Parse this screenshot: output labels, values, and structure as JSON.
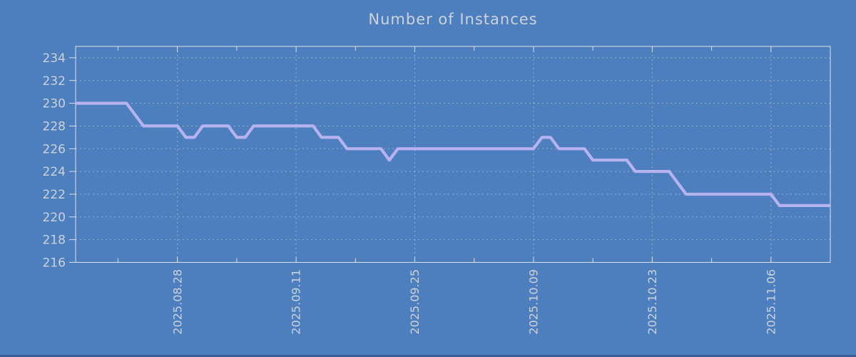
{
  "window": {
    "background_color": "#4d7ebd",
    "bottom_strip_color": "#3a5c92"
  },
  "chart_data": {
    "type": "line",
    "title": "Number of Instances",
    "grid": true,
    "legend": false,
    "colors": {
      "background": "#4d7ebd",
      "line": "#b7b3f1",
      "border": "#dde1e6",
      "grid": "#d4d8d4",
      "text": "#ccd2d9",
      "title": "#ced3da"
    },
    "y_axis": {
      "min": 216,
      "max": 235,
      "ticks": [
        {
          "value": 216,
          "label": "216"
        },
        {
          "value": 218,
          "label": "218"
        },
        {
          "value": 220,
          "label": "220"
        },
        {
          "value": 222,
          "label": "222"
        },
        {
          "value": 224,
          "label": "224"
        },
        {
          "value": 226,
          "label": "226"
        },
        {
          "value": 228,
          "label": "228"
        },
        {
          "value": 230,
          "label": "230"
        },
        {
          "value": 232,
          "label": "232"
        },
        {
          "value": 234,
          "label": "234"
        }
      ]
    },
    "x_axis": {
      "start": "2025-08-16",
      "end": "2025-11-13",
      "major_ticks": [
        {
          "date": "2025-08-28",
          "label": "2025.08.28"
        },
        {
          "date": "2025-09-11",
          "label": "2025.09.11"
        },
        {
          "date": "2025-09-25",
          "label": "2025.09.25"
        },
        {
          "date": "2025-10-09",
          "label": "2025.10.09"
        },
        {
          "date": "2025-10-23",
          "label": "2025.10.23"
        },
        {
          "date": "2025-11-06",
          "label": "2025.11.06"
        }
      ],
      "minor_ticks": [
        "2025-08-21",
        "2025-09-04",
        "2025-09-18",
        "2025-10-02",
        "2025-10-16",
        "2025-10-30",
        "2025-11-13"
      ]
    },
    "series": [
      {
        "name": "instances",
        "color": "#b7b3f1",
        "points": [
          [
            "2025-08-16",
            230
          ],
          [
            "2025-08-17",
            230
          ],
          [
            "2025-08-18",
            230
          ],
          [
            "2025-08-19",
            230
          ],
          [
            "2025-08-20",
            230
          ],
          [
            "2025-08-21",
            230
          ],
          [
            "2025-08-22",
            230
          ],
          [
            "2025-08-23",
            229
          ],
          [
            "2025-08-24",
            228
          ],
          [
            "2025-08-25",
            228
          ],
          [
            "2025-08-26",
            228
          ],
          [
            "2025-08-27",
            228
          ],
          [
            "2025-08-28",
            228
          ],
          [
            "2025-08-29",
            227
          ],
          [
            "2025-08-30",
            227
          ],
          [
            "2025-08-31",
            228
          ],
          [
            "2025-09-01",
            228
          ],
          [
            "2025-09-02",
            228
          ],
          [
            "2025-09-03",
            228
          ],
          [
            "2025-09-04",
            227
          ],
          [
            "2025-09-05",
            227
          ],
          [
            "2025-09-06",
            228
          ],
          [
            "2025-09-07",
            228
          ],
          [
            "2025-09-08",
            228
          ],
          [
            "2025-09-09",
            228
          ],
          [
            "2025-09-10",
            228
          ],
          [
            "2025-09-11",
            228
          ],
          [
            "2025-09-12",
            228
          ],
          [
            "2025-09-13",
            228
          ],
          [
            "2025-09-14",
            227
          ],
          [
            "2025-09-15",
            227
          ],
          [
            "2025-09-16",
            227
          ],
          [
            "2025-09-17",
            226
          ],
          [
            "2025-09-18",
            226
          ],
          [
            "2025-09-19",
            226
          ],
          [
            "2025-09-20",
            226
          ],
          [
            "2025-09-21",
            226
          ],
          [
            "2025-09-22",
            225
          ],
          [
            "2025-09-23",
            226
          ],
          [
            "2025-09-24",
            226
          ],
          [
            "2025-09-25",
            226
          ],
          [
            "2025-09-26",
            226
          ],
          [
            "2025-09-27",
            226
          ],
          [
            "2025-09-28",
            226
          ],
          [
            "2025-09-29",
            226
          ],
          [
            "2025-09-30",
            226
          ],
          [
            "2025-10-01",
            226
          ],
          [
            "2025-10-02",
            226
          ],
          [
            "2025-10-03",
            226
          ],
          [
            "2025-10-04",
            226
          ],
          [
            "2025-10-05",
            226
          ],
          [
            "2025-10-06",
            226
          ],
          [
            "2025-10-07",
            226
          ],
          [
            "2025-10-08",
            226
          ],
          [
            "2025-10-09",
            226
          ],
          [
            "2025-10-10",
            227
          ],
          [
            "2025-10-11",
            227
          ],
          [
            "2025-10-12",
            226
          ],
          [
            "2025-10-13",
            226
          ],
          [
            "2025-10-14",
            226
          ],
          [
            "2025-10-15",
            226
          ],
          [
            "2025-10-16",
            225
          ],
          [
            "2025-10-17",
            225
          ],
          [
            "2025-10-18",
            225
          ],
          [
            "2025-10-19",
            225
          ],
          [
            "2025-10-20",
            225
          ],
          [
            "2025-10-21",
            224
          ],
          [
            "2025-10-22",
            224
          ],
          [
            "2025-10-23",
            224
          ],
          [
            "2025-10-24",
            224
          ],
          [
            "2025-10-25",
            224
          ],
          [
            "2025-10-26",
            223
          ],
          [
            "2025-10-27",
            222
          ],
          [
            "2025-10-28",
            222
          ],
          [
            "2025-10-29",
            222
          ],
          [
            "2025-10-30",
            222
          ],
          [
            "2025-10-31",
            222
          ],
          [
            "2025-11-01",
            222
          ],
          [
            "2025-11-02",
            222
          ],
          [
            "2025-11-03",
            222
          ],
          [
            "2025-11-04",
            222
          ],
          [
            "2025-11-05",
            222
          ],
          [
            "2025-11-06",
            222
          ],
          [
            "2025-11-07",
            221
          ],
          [
            "2025-11-08",
            221
          ],
          [
            "2025-11-09",
            221
          ],
          [
            "2025-11-10",
            221
          ],
          [
            "2025-11-11",
            221
          ],
          [
            "2025-11-12",
            221
          ],
          [
            "2025-11-13",
            221
          ]
        ]
      }
    ]
  }
}
